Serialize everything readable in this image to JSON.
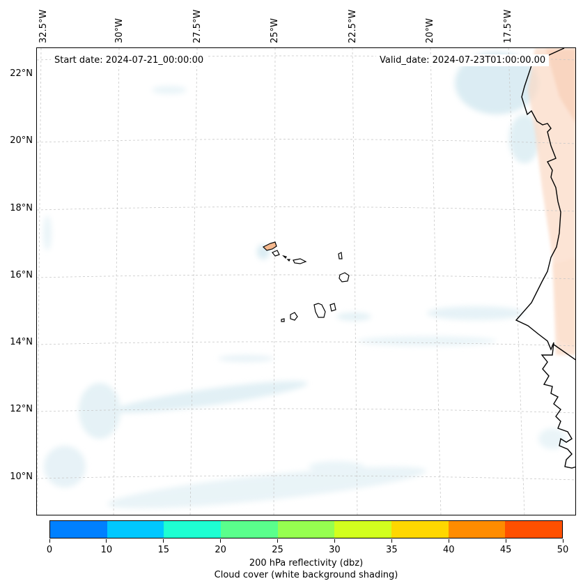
{
  "map": {
    "start_date": "Start date: 2024-07-21_00:00:00",
    "valid_date": "Valid_date: 2024-07-23T01:00:00.00",
    "lon_labels": [
      "32.5°W",
      "30°W",
      "27.5°W",
      "25°W",
      "22.5°W",
      "20°W",
      "17.5°W"
    ],
    "lat_labels": [
      "22°N",
      "20°N",
      "18°N",
      "16°N",
      "14°N",
      "12°N",
      "10°N"
    ],
    "features": [
      "coastline",
      "cape-verde-islands",
      "reflectivity-shading",
      "cloud-cover-shading",
      "graticule"
    ]
  },
  "colorbar": {
    "ticks": [
      "0",
      "10",
      "15",
      "20",
      "25",
      "30",
      "35",
      "40",
      "45",
      "50"
    ],
    "colors": [
      "#0080ff",
      "#00c8ff",
      "#1effd2",
      "#5aff8c",
      "#96ff50",
      "#d2ff1e",
      "#ffd700",
      "#ff8c00",
      "#ff5000"
    ],
    "label_line1": "200 hPa reflectivity (dbz)",
    "label_line2": "Cloud cover (white background shading)"
  }
}
